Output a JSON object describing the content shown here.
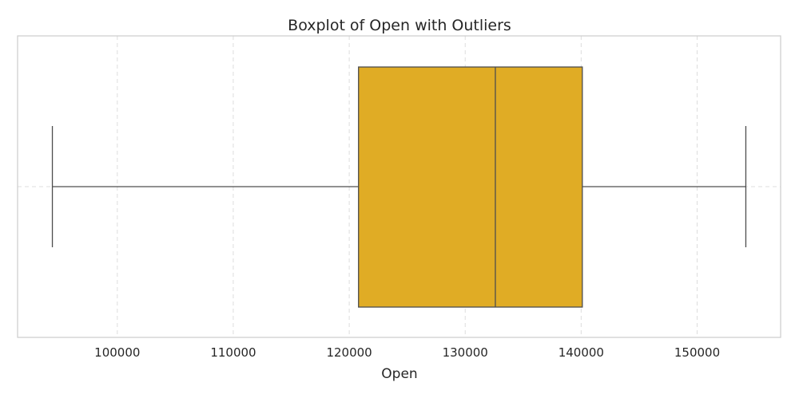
{
  "chart_data": {
    "type": "boxplot",
    "title": "Boxplot of Open with Outliers",
    "xlabel": "Open",
    "ylabel": "",
    "orientation": "horizontal",
    "xlim": [
      91400,
      157200
    ],
    "xticks": [
      100000,
      110000,
      120000,
      130000,
      140000,
      150000
    ],
    "grid": true,
    "box": {
      "whisker_low": 94400,
      "q1": 120800,
      "median": 132600,
      "q3": 140100,
      "whisker_high": 154200,
      "outliers": []
    },
    "colors": {
      "box_fill": "#e0ac25",
      "box_edge": "#4d4d4d",
      "grid": "#dddddd",
      "frame": "#cccccc"
    }
  }
}
